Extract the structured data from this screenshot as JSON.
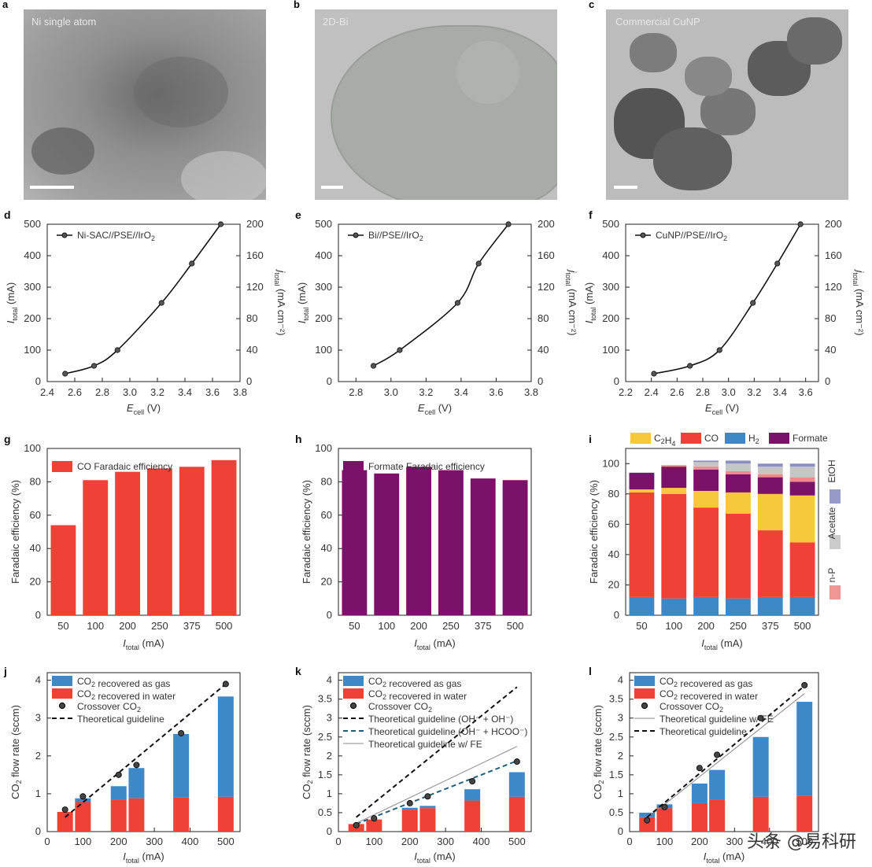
{
  "microscopy": [
    {
      "letter": "a",
      "caption": "Ni single atom"
    },
    {
      "letter": "b",
      "caption": "2D-Bi"
    },
    {
      "letter": "c",
      "caption": "Commercial CuNP"
    }
  ],
  "watermark": "头条 @易科研",
  "chart_data": [
    {
      "panel": "d",
      "type": "line",
      "title": "",
      "xlabel": "E_cell (V)",
      "ylabel": "I_total (mA)",
      "ylabel_right": "j_total (mA cm^-2)",
      "legend": "Ni-SAC//PSE//IrO2",
      "xlim": [
        2.4,
        3.8
      ],
      "xticks": [
        2.4,
        2.6,
        2.8,
        3.0,
        3.2,
        3.4,
        3.6,
        3.8
      ],
      "ylim": [
        0,
        500
      ],
      "yticks": [
        0,
        100,
        200,
        300,
        400,
        500
      ],
      "y2ticks": [
        0,
        40,
        80,
        120,
        160,
        200
      ],
      "x": [
        2.53,
        2.74,
        2.91,
        3.23,
        3.45,
        3.66
      ],
      "y": [
        25,
        50,
        100,
        250,
        375,
        500
      ]
    },
    {
      "panel": "e",
      "type": "line",
      "xlabel": "E_cell (V)",
      "ylabel": "I_total (mA)",
      "ylabel_right": "j_total (mA cm^-2)",
      "legend": "Bi//PSE//IrO2",
      "xlim": [
        2.7,
        3.8
      ],
      "xticks": [
        2.8,
        3.0,
        3.2,
        3.4,
        3.6,
        3.8
      ],
      "ylim": [
        0,
        500
      ],
      "yticks": [
        0,
        100,
        200,
        300,
        400,
        500
      ],
      "y2ticks": [
        0,
        40,
        80,
        120,
        160,
        200
      ],
      "x": [
        2.9,
        3.05,
        3.38,
        3.5,
        3.67
      ],
      "y": [
        50,
        100,
        250,
        375,
        500
      ]
    },
    {
      "panel": "f",
      "type": "line",
      "xlabel": "E_cell (V)",
      "ylabel": "I_total (mA)",
      "ylabel_right": "j_total (mA cm^-2)",
      "legend": "CuNP//PSE//IrO2",
      "xlim": [
        2.2,
        3.7
      ],
      "xticks": [
        2.2,
        2.4,
        2.6,
        2.8,
        3.0,
        3.2,
        3.4,
        3.6
      ],
      "ylim": [
        0,
        500
      ],
      "yticks": [
        0,
        100,
        200,
        300,
        400,
        500
      ],
      "y2ticks": [
        0,
        40,
        80,
        120,
        160,
        200
      ],
      "x": [
        2.42,
        2.7,
        2.93,
        3.19,
        3.38,
        3.56
      ],
      "y": [
        25,
        50,
        100,
        250,
        375,
        500
      ]
    },
    {
      "panel": "g",
      "type": "bar",
      "xlabel": "I_total (mA)",
      "ylabel": "Faradaic efficiency (%)",
      "legend": "CO Faradaic efficiency",
      "color": "#ef4136",
      "categories": [
        "50",
        "100",
        "200",
        "250",
        "375",
        "500"
      ],
      "values": [
        54,
        81,
        86,
        88,
        89,
        93
      ],
      "ylim": [
        0,
        100
      ],
      "yticks": [
        0,
        20,
        40,
        60,
        80,
        100
      ]
    },
    {
      "panel": "h",
      "type": "bar",
      "xlabel": "I_total (mA)",
      "ylabel": "Faradaic efficiency (%)",
      "legend": "Formate Faradaic efficiency",
      "color": "#7b1168",
      "categories": [
        "50",
        "100",
        "200",
        "250",
        "375",
        "500"
      ],
      "values": [
        87,
        85,
        89,
        87,
        82,
        81
      ],
      "ylim": [
        0,
        100
      ],
      "yticks": [
        0,
        20,
        40,
        60,
        80,
        100
      ]
    },
    {
      "panel": "i",
      "type": "bar",
      "stacked": true,
      "xlabel": "I_total (mA)",
      "ylabel": "Faradaic efficiency (%)",
      "categories": [
        "50",
        "100",
        "200",
        "250",
        "375",
        "500"
      ],
      "legend_top": [
        "C2H4",
        "CO",
        "H2",
        "Formate"
      ],
      "legend_side": [
        "EtOH",
        "Acetate",
        "n-P"
      ],
      "ylim": [
        0,
        110
      ],
      "yticks": [
        0,
        20,
        40,
        60,
        80,
        100
      ],
      "series": [
        {
          "name": "H2",
          "color": "#3e88c7",
          "values": [
            12,
            11,
            12,
            11,
            12,
            12
          ]
        },
        {
          "name": "CO",
          "color": "#ef4136",
          "values": [
            69,
            69,
            59,
            56,
            44,
            36
          ]
        },
        {
          "name": "C2H4",
          "color": "#f7c93a",
          "values": [
            2,
            4,
            11,
            14,
            24,
            31
          ]
        },
        {
          "name": "Formate",
          "color": "#7b1168",
          "values": [
            11,
            14,
            14,
            12,
            11,
            9
          ]
        },
        {
          "name": "n-P",
          "color": "#f08a8a",
          "values": [
            0,
            1,
            2,
            2,
            2,
            3
          ]
        },
        {
          "name": "Acetate",
          "color": "#c6c6c6",
          "values": [
            0,
            0,
            3,
            5,
            5,
            7
          ]
        },
        {
          "name": "EtOH",
          "color": "#8b8fc2",
          "values": [
            0,
            0,
            1,
            2,
            2,
            2
          ]
        }
      ]
    },
    {
      "panel": "j",
      "type": "bar",
      "stacked": true,
      "xlabel": "I_total (mA)",
      "ylabel": "CO2 flow rate (sccm)",
      "xlim": [
        0,
        540
      ],
      "xticks": [
        0,
        100,
        200,
        300,
        400,
        500
      ],
      "ylim": [
        0,
        4.2
      ],
      "yticks": [
        0,
        1,
        2,
        3,
        4
      ],
      "x": [
        50,
        100,
        200,
        250,
        375,
        500
      ],
      "series": [
        {
          "name": "CO2 recovered in water",
          "color": "#ef4136",
          "values": [
            0.52,
            0.78,
            0.85,
            0.88,
            0.9,
            0.92
          ]
        },
        {
          "name": "CO2 recovered as gas",
          "color": "#3e88c7",
          "values": [
            0,
            0.1,
            0.35,
            0.8,
            1.68,
            2.65
          ]
        }
      ],
      "crossover": [
        0.58,
        0.93,
        1.5,
        1.76,
        2.6,
        3.9
      ],
      "guideline": {
        "x": [
          50,
          500
        ],
        "y": [
          0.38,
          3.9
        ]
      },
      "legend": [
        "CO2 recovered as gas",
        "CO2 recovered in water",
        "Crossover CO2",
        "Theoretical guideline"
      ]
    },
    {
      "panel": "k",
      "type": "bar",
      "stacked": true,
      "xlabel": "I_total (mA)",
      "ylabel": "CO2 flow rate (sccm)",
      "xlim": [
        0,
        540
      ],
      "xticks": [
        0,
        100,
        200,
        300,
        400,
        500
      ],
      "ylim": [
        0,
        4.2
      ],
      "yticks": [
        0,
        0.5,
        1.0,
        1.5,
        2.0,
        2.5,
        3.0,
        3.5,
        4.0
      ],
      "x": [
        50,
        100,
        200,
        250,
        375,
        500
      ],
      "series": [
        {
          "name": "CO2 recovered in water",
          "color": "#ef4136",
          "values": [
            0.2,
            0.32,
            0.58,
            0.62,
            0.82,
            0.92
          ]
        },
        {
          "name": "CO2 recovered as gas",
          "color": "#3e88c7",
          "values": [
            0,
            0,
            0.05,
            0.06,
            0.3,
            0.65
          ]
        }
      ],
      "crossover": [
        0.17,
        0.35,
        0.75,
        0.93,
        1.33,
        1.85
      ],
      "guidelines": [
        {
          "label": "Theoretical guideline (OH- + OH-)",
          "x": [
            50,
            500
          ],
          "y": [
            0.38,
            3.82
          ]
        },
        {
          "label": "Theoretical guideline (OH- + HCOO-)",
          "x": [
            50,
            500
          ],
          "y": [
            0.2,
            1.87
          ]
        },
        {
          "label": "Theoretical guideline w/ FE",
          "x": [
            50,
            500
          ],
          "y": [
            0.22,
            2.25
          ]
        }
      ],
      "legend": [
        "CO2 recovered as gas",
        "CO2 recovered in water",
        "Crossover CO2",
        "Theoretical guideline (OH- + OH-)",
        "Theoretical guideline (OH- + HCOO-)",
        "Theoretical guideline w/ FE"
      ]
    },
    {
      "panel": "l",
      "type": "bar",
      "stacked": true,
      "xlabel": "I_total (mA)",
      "ylabel": "CO2 flow rate (sccm)",
      "xlim": [
        0,
        540
      ],
      "xticks": [
        0,
        100,
        200,
        300,
        400,
        500
      ],
      "ylim": [
        0,
        4.2
      ],
      "yticks": [
        0,
        0.5,
        1.0,
        1.5,
        2.0,
        2.5,
        3.0,
        3.5,
        4.0
      ],
      "x": [
        50,
        100,
        200,
        250,
        375,
        500
      ],
      "series": [
        {
          "name": "CO2 recovered in water",
          "color": "#ef4136",
          "values": [
            0.38,
            0.62,
            0.75,
            0.85,
            0.92,
            0.95
          ]
        },
        {
          "name": "CO2 recovered as gas",
          "color": "#3e88c7",
          "values": [
            0.12,
            0.1,
            0.52,
            0.78,
            1.58,
            2.48
          ]
        }
      ],
      "crossover": [
        0.3,
        0.65,
        1.68,
        2.03,
        3.0,
        3.87
      ],
      "guidelines": [
        {
          "label": "Theoretical guideline w/ FE",
          "x": [
            50,
            500
          ],
          "y": [
            0.35,
            3.65
          ]
        },
        {
          "label": "Theoretical guideline",
          "x": [
            50,
            500
          ],
          "y": [
            0.38,
            3.85
          ]
        }
      ],
      "legend": [
        "CO2 recovered as gas",
        "CO2 recovered in water",
        "Crossover CO2",
        "Theoretical guideline w/ FE",
        "Theoretical guideline"
      ]
    }
  ]
}
